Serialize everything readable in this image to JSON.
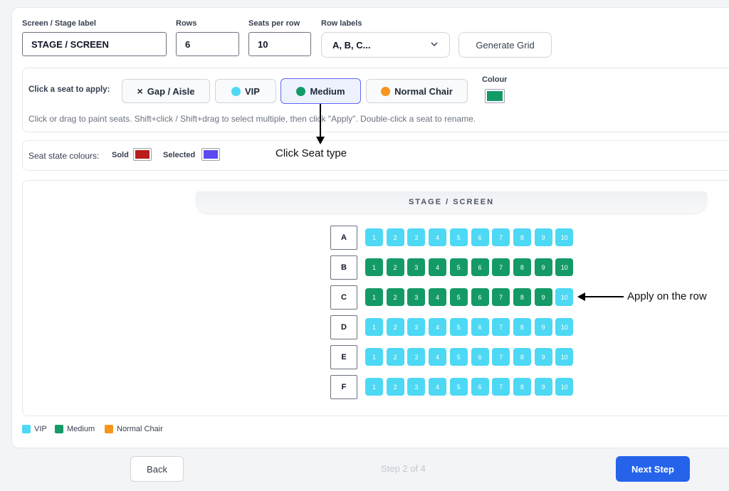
{
  "form": {
    "stage_label_caption": "Screen / Stage label",
    "stage_label_value": "STAGE / SCREEN",
    "rows_caption": "Rows",
    "rows_value": "6",
    "seats_caption": "Seats per row",
    "seats_value": "10",
    "row_labels_caption": "Row labels",
    "row_labels_value": "A, B, C...",
    "generate_label": "Generate Grid"
  },
  "seat_types": {
    "caption": "Click a seat to apply:",
    "items": [
      {
        "label": "Gap / Aisle",
        "glyph": "×"
      },
      {
        "label": "VIP",
        "color": "#4dd8f4"
      },
      {
        "label": "Medium",
        "color": "#149a66",
        "active": true
      },
      {
        "label": "Normal Chair",
        "color": "#f7941d"
      }
    ],
    "colour_caption": "Colour",
    "colour_value": "#149a66",
    "hint": "Click or drag to paint seats. Shift+click / Shift+drag to select multiple, then click \"Apply\". Double-click a seat to rename."
  },
  "seat_states": {
    "caption": "Seat state colours:",
    "sold_label": "Sold",
    "sold_color": "#b91c1c",
    "selected_label": "Selected",
    "selected_color": "#5b4af0"
  },
  "stage_title": "STAGE / SCREEN",
  "grid": {
    "rows": [
      {
        "label": "A",
        "seats": [
          "vip",
          "vip",
          "vip",
          "vip",
          "vip",
          "vip",
          "vip",
          "vip",
          "vip",
          "vip"
        ]
      },
      {
        "label": "B",
        "seats": [
          "medium",
          "medium",
          "medium",
          "medium",
          "medium",
          "medium",
          "medium",
          "medium",
          "medium",
          "medium"
        ]
      },
      {
        "label": "C",
        "seats": [
          "medium",
          "medium",
          "medium",
          "medium",
          "medium",
          "medium",
          "medium",
          "medium",
          "medium",
          "vip"
        ]
      },
      {
        "label": "D",
        "seats": [
          "vip",
          "vip",
          "vip",
          "vip",
          "vip",
          "vip",
          "vip",
          "vip",
          "vip",
          "vip"
        ]
      },
      {
        "label": "E",
        "seats": [
          "vip",
          "vip",
          "vip",
          "vip",
          "vip",
          "vip",
          "vip",
          "vip",
          "vip",
          "vip"
        ]
      },
      {
        "label": "F",
        "seats": [
          "vip",
          "vip",
          "vip",
          "vip",
          "vip",
          "vip",
          "vip",
          "vip",
          "vip",
          "vip"
        ]
      }
    ],
    "seat_numbers": [
      "1",
      "2",
      "3",
      "4",
      "5",
      "6",
      "7",
      "8",
      "9",
      "10"
    ]
  },
  "legend": [
    {
      "label": "VIP",
      "color": "#4dd8f4"
    },
    {
      "label": "Medium",
      "color": "#149a66"
    },
    {
      "label": "Normal Chair",
      "color": "#f7941d"
    }
  ],
  "annotations": {
    "click_seat_type": "Click Seat type",
    "apply_on_row": "Apply on the row"
  },
  "footer": {
    "back_label": "Back",
    "step_text": "Step 2 of 4",
    "next_label": "Next Step"
  }
}
